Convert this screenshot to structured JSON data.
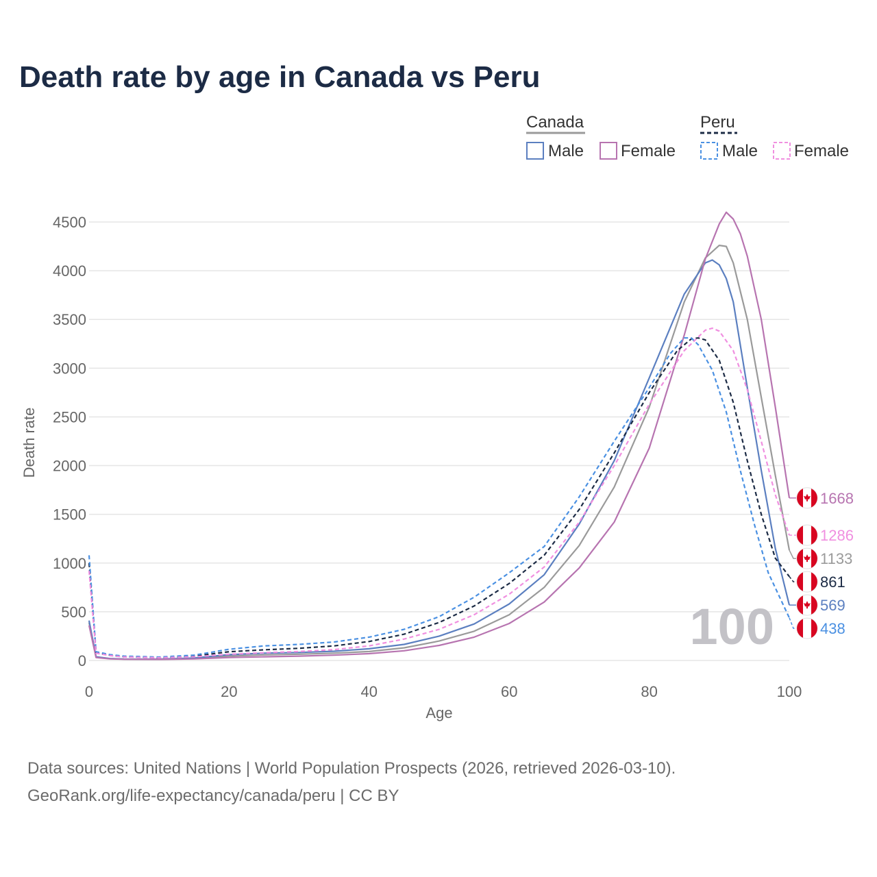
{
  "title": "Death rate by age in Canada vs Peru",
  "legend": {
    "groups": [
      {
        "country": "Canada",
        "items": [
          "Male",
          "Female"
        ],
        "dash": false
      },
      {
        "country": "Peru",
        "items": [
          "Male",
          "Female"
        ],
        "dash": true
      }
    ]
  },
  "source_line1": "Data sources: United Nations | World Population Prospects (2026, retrieved 2026-03-10).",
  "source_line2": "GeoRank.org/life-expectancy/canada/peru | CC BY",
  "colors": {
    "canada_male": "#5b7fc0",
    "canada_female": "#b774b0",
    "canada_total": "#9a9a9a",
    "peru_male": "#4a90e2",
    "peru_female": "#f08fe0",
    "peru_total": "#1c2b45",
    "flag_red": "#d80621",
    "watermark": "#c3c2c7",
    "grid": "#e5e5e5",
    "axis_text": "#666666"
  },
  "chart_data": {
    "type": "line",
    "title": "Death rate by age in Canada vs Peru",
    "xlabel": "Age",
    "ylabel": "Death rate",
    "xlim": [
      0,
      100
    ],
    "ylim": [
      0,
      4500
    ],
    "xticks": [
      0,
      20,
      40,
      60,
      80,
      100
    ],
    "yticks": [
      0,
      500,
      1000,
      1500,
      2000,
      2500,
      3000,
      3500,
      4000,
      4500
    ],
    "grid": true,
    "watermark": "100",
    "series": [
      {
        "name": "Canada Total",
        "country": "Canada",
        "key": "canada_total",
        "dashed": false,
        "end_label": "1133",
        "points": [
          [
            0,
            390
          ],
          [
            1,
            35
          ],
          [
            3,
            18
          ],
          [
            5,
            14
          ],
          [
            10,
            12
          ],
          [
            15,
            20
          ],
          [
            20,
            45
          ],
          [
            25,
            58
          ],
          [
            30,
            65
          ],
          [
            35,
            75
          ],
          [
            40,
            92
          ],
          [
            45,
            130
          ],
          [
            50,
            200
          ],
          [
            55,
            300
          ],
          [
            60,
            470
          ],
          [
            65,
            750
          ],
          [
            70,
            1180
          ],
          [
            75,
            1780
          ],
          [
            80,
            2600
          ],
          [
            85,
            3680
          ],
          [
            88,
            4130
          ],
          [
            90,
            4260
          ],
          [
            91,
            4250
          ],
          [
            92,
            4080
          ],
          [
            94,
            3500
          ],
          [
            96,
            2700
          ],
          [
            98,
            1900
          ],
          [
            100,
            1133
          ]
        ]
      },
      {
        "name": "Canada Male",
        "country": "Canada",
        "key": "canada_male",
        "dashed": false,
        "end_label": "569",
        "points": [
          [
            0,
            410
          ],
          [
            1,
            38
          ],
          [
            3,
            20
          ],
          [
            5,
            15
          ],
          [
            10,
            14
          ],
          [
            15,
            25
          ],
          [
            20,
            60
          ],
          [
            25,
            75
          ],
          [
            30,
            82
          ],
          [
            35,
            95
          ],
          [
            40,
            120
          ],
          [
            45,
            165
          ],
          [
            50,
            250
          ],
          [
            55,
            375
          ],
          [
            60,
            580
          ],
          [
            65,
            880
          ],
          [
            70,
            1400
          ],
          [
            75,
            2050
          ],
          [
            80,
            2900
          ],
          [
            85,
            3760
          ],
          [
            88,
            4080
          ],
          [
            89,
            4110
          ],
          [
            90,
            4060
          ],
          [
            91,
            3920
          ],
          [
            92,
            3680
          ],
          [
            94,
            2800
          ],
          [
            96,
            1950
          ],
          [
            98,
            1150
          ],
          [
            100,
            569
          ]
        ]
      },
      {
        "name": "Canada Female",
        "country": "Canada",
        "key": "canada_female",
        "dashed": false,
        "end_label": "1668",
        "points": [
          [
            0,
            360
          ],
          [
            1,
            30
          ],
          [
            3,
            16
          ],
          [
            5,
            13
          ],
          [
            10,
            11
          ],
          [
            15,
            16
          ],
          [
            20,
            30
          ],
          [
            25,
            38
          ],
          [
            30,
            45
          ],
          [
            35,
            55
          ],
          [
            40,
            70
          ],
          [
            45,
            100
          ],
          [
            50,
            155
          ],
          [
            55,
            240
          ],
          [
            60,
            380
          ],
          [
            65,
            600
          ],
          [
            70,
            950
          ],
          [
            75,
            1420
          ],
          [
            80,
            2180
          ],
          [
            85,
            3340
          ],
          [
            88,
            4120
          ],
          [
            90,
            4480
          ],
          [
            91,
            4600
          ],
          [
            92,
            4530
          ],
          [
            93,
            4380
          ],
          [
            94,
            4150
          ],
          [
            96,
            3500
          ],
          [
            98,
            2600
          ],
          [
            100,
            1668
          ]
        ]
      },
      {
        "name": "Peru Total",
        "country": "Peru",
        "key": "peru_total",
        "dashed": true,
        "end_label": "861",
        "points": [
          [
            0,
            1000
          ],
          [
            1,
            80
          ],
          [
            3,
            55
          ],
          [
            5,
            40
          ],
          [
            10,
            30
          ],
          [
            15,
            45
          ],
          [
            20,
            90
          ],
          [
            25,
            110
          ],
          [
            30,
            125
          ],
          [
            35,
            150
          ],
          [
            40,
            195
          ],
          [
            45,
            270
          ],
          [
            50,
            390
          ],
          [
            55,
            560
          ],
          [
            60,
            790
          ],
          [
            65,
            1080
          ],
          [
            70,
            1550
          ],
          [
            75,
            2130
          ],
          [
            80,
            2750
          ],
          [
            84,
            3180
          ],
          [
            86,
            3300
          ],
          [
            87,
            3310
          ],
          [
            88,
            3290
          ],
          [
            90,
            3080
          ],
          [
            92,
            2650
          ],
          [
            94,
            2050
          ],
          [
            96,
            1500
          ],
          [
            98,
            1050
          ],
          [
            100,
            861
          ]
        ]
      },
      {
        "name": "Peru Male",
        "country": "Peru",
        "key": "peru_male",
        "dashed": true,
        "end_label": "438",
        "points": [
          [
            0,
            1080
          ],
          [
            1,
            90
          ],
          [
            3,
            60
          ],
          [
            5,
            45
          ],
          [
            10,
            35
          ],
          [
            15,
            55
          ],
          [
            20,
            115
          ],
          [
            25,
            150
          ],
          [
            30,
            165
          ],
          [
            35,
            190
          ],
          [
            40,
            240
          ],
          [
            45,
            320
          ],
          [
            50,
            450
          ],
          [
            55,
            650
          ],
          [
            60,
            900
          ],
          [
            65,
            1170
          ],
          [
            70,
            1680
          ],
          [
            75,
            2250
          ],
          [
            80,
            2800
          ],
          [
            83,
            3150
          ],
          [
            85,
            3310
          ],
          [
            86,
            3310
          ],
          [
            87,
            3240
          ],
          [
            89,
            2980
          ],
          [
            91,
            2550
          ],
          [
            93,
            1950
          ],
          [
            95,
            1400
          ],
          [
            97,
            900
          ],
          [
            100,
            438
          ]
        ]
      },
      {
        "name": "Peru Female",
        "country": "Peru",
        "key": "peru_female",
        "dashed": true,
        "end_label": "1286",
        "points": [
          [
            0,
            920
          ],
          [
            1,
            75
          ],
          [
            3,
            50
          ],
          [
            5,
            36
          ],
          [
            10,
            28
          ],
          [
            15,
            38
          ],
          [
            20,
            65
          ],
          [
            25,
            80
          ],
          [
            30,
            92
          ],
          [
            35,
            112
          ],
          [
            40,
            150
          ],
          [
            45,
            220
          ],
          [
            50,
            320
          ],
          [
            55,
            470
          ],
          [
            60,
            680
          ],
          [
            65,
            960
          ],
          [
            70,
            1420
          ],
          [
            75,
            2000
          ],
          [
            80,
            2630
          ],
          [
            85,
            3180
          ],
          [
            88,
            3390
          ],
          [
            89,
            3410
          ],
          [
            90,
            3380
          ],
          [
            92,
            3180
          ],
          [
            94,
            2780
          ],
          [
            96,
            2250
          ],
          [
            98,
            1700
          ],
          [
            100,
            1286
          ]
        ]
      }
    ]
  }
}
